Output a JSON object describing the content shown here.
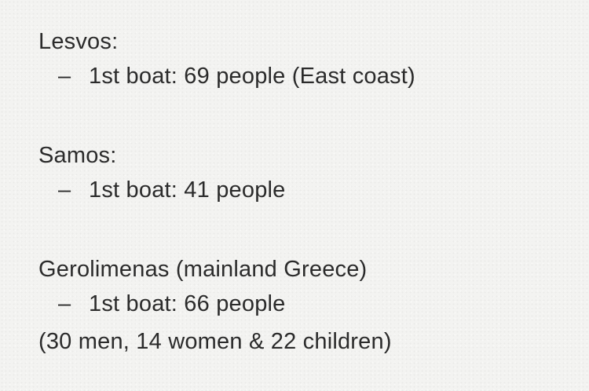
{
  "note": {
    "sections": [
      {
        "heading": "Lesvos:",
        "items": [
          {
            "bullet": "–",
            "text": "1st boat: 69 people (East coast)"
          }
        ]
      },
      {
        "heading": "Samos:",
        "items": [
          {
            "bullet": "–",
            "text": "1st boat: 41 people"
          }
        ]
      },
      {
        "heading": "Gerolimenas (mainland Greece)",
        "items": [
          {
            "bullet": "–",
            "text": "1st boat: 66 people"
          }
        ],
        "trailing": "(30 men, 14 women & 22 children)"
      }
    ]
  }
}
